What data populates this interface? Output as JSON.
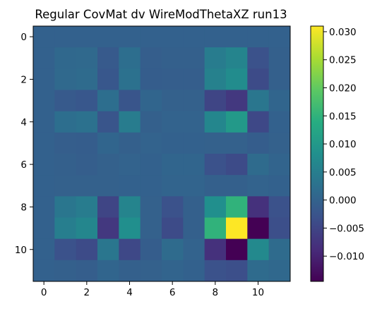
{
  "chart_data": {
    "type": "heatmap",
    "title": "Regular CovMat dv WireModThetaXZ run13",
    "xlabel": "",
    "ylabel": "",
    "x_ticks": [
      0,
      2,
      4,
      6,
      8,
      10
    ],
    "y_ticks": [
      0,
      2,
      4,
      6,
      8,
      10
    ],
    "xlim": [
      -0.5,
      11.5
    ],
    "ylim": [
      11.5,
      -0.5
    ],
    "colormap": "viridis",
    "vmin": -0.0145,
    "vmax": 0.031,
    "colorbar_ticks": [
      0.03,
      0.025,
      0.02,
      0.015,
      0.01,
      0.005,
      0.0,
      -0.005,
      -0.01
    ],
    "colorbar_tick_labels": [
      "0.030",
      "0.025",
      "0.020",
      "0.015",
      "0.010",
      "0.005",
      "0.000",
      "−0.005",
      "−0.010"
    ],
    "matrix": [
      [
        -0.0002,
        -0.0002,
        -0.0002,
        -0.0002,
        -0.0002,
        -0.0002,
        -0.0002,
        -0.0002,
        -0.0002,
        -0.0002,
        -0.0002,
        -0.0002
      ],
      [
        -0.0002,
        0.001,
        0.0012,
        -0.0015,
        0.002,
        -0.0008,
        -0.0005,
        -0.0005,
        0.0045,
        0.006,
        -0.003,
        -0.0005
      ],
      [
        -0.0002,
        0.0012,
        0.0015,
        -0.002,
        0.0025,
        -0.001,
        -0.0008,
        -0.0008,
        0.0055,
        0.0075,
        -0.004,
        -0.0005
      ],
      [
        -0.0002,
        -0.0015,
        -0.002,
        0.002,
        -0.0025,
        0.0005,
        -0.0003,
        -0.0003,
        -0.005,
        -0.007,
        0.0035,
        0.0005
      ],
      [
        -0.0002,
        0.002,
        0.0025,
        -0.0025,
        0.0045,
        -0.0005,
        0.0,
        0.0,
        0.0065,
        0.01,
        -0.0045,
        -0.0002
      ],
      [
        -0.0002,
        -0.0008,
        -0.001,
        0.0005,
        -0.0005,
        0.0,
        -0.0002,
        -0.0002,
        -0.0003,
        -0.0003,
        -0.001,
        -0.0003
      ],
      [
        -0.0002,
        -0.0005,
        -0.0008,
        -0.0003,
        0.0,
        -0.0002,
        0.0005,
        0.0005,
        -0.003,
        -0.004,
        0.0015,
        0.0002
      ],
      [
        -0.0002,
        -0.0003,
        -0.0003,
        -0.0003,
        -0.0002,
        -0.0002,
        0.0002,
        0.0002,
        -0.0005,
        -0.0005,
        0.0,
        -0.0002
      ],
      [
        -0.0002,
        0.0035,
        0.0045,
        -0.005,
        0.006,
        -0.0003,
        -0.003,
        -0.0005,
        0.008,
        0.015,
        -0.008,
        -0.003
      ],
      [
        -0.0002,
        0.005,
        0.0065,
        -0.007,
        0.008,
        -0.0003,
        -0.004,
        -0.0005,
        0.015,
        0.031,
        -0.0145,
        -0.0035
      ],
      [
        -0.0002,
        -0.003,
        -0.004,
        0.0035,
        -0.0045,
        -0.001,
        0.0015,
        0.0,
        -0.008,
        -0.0145,
        0.007,
        0.0015
      ],
      [
        -0.0002,
        -0.0005,
        -0.0008,
        0.0005,
        -0.0005,
        -0.0003,
        0.0002,
        -0.0002,
        -0.003,
        -0.0035,
        0.0015,
        0.001
      ]
    ]
  }
}
